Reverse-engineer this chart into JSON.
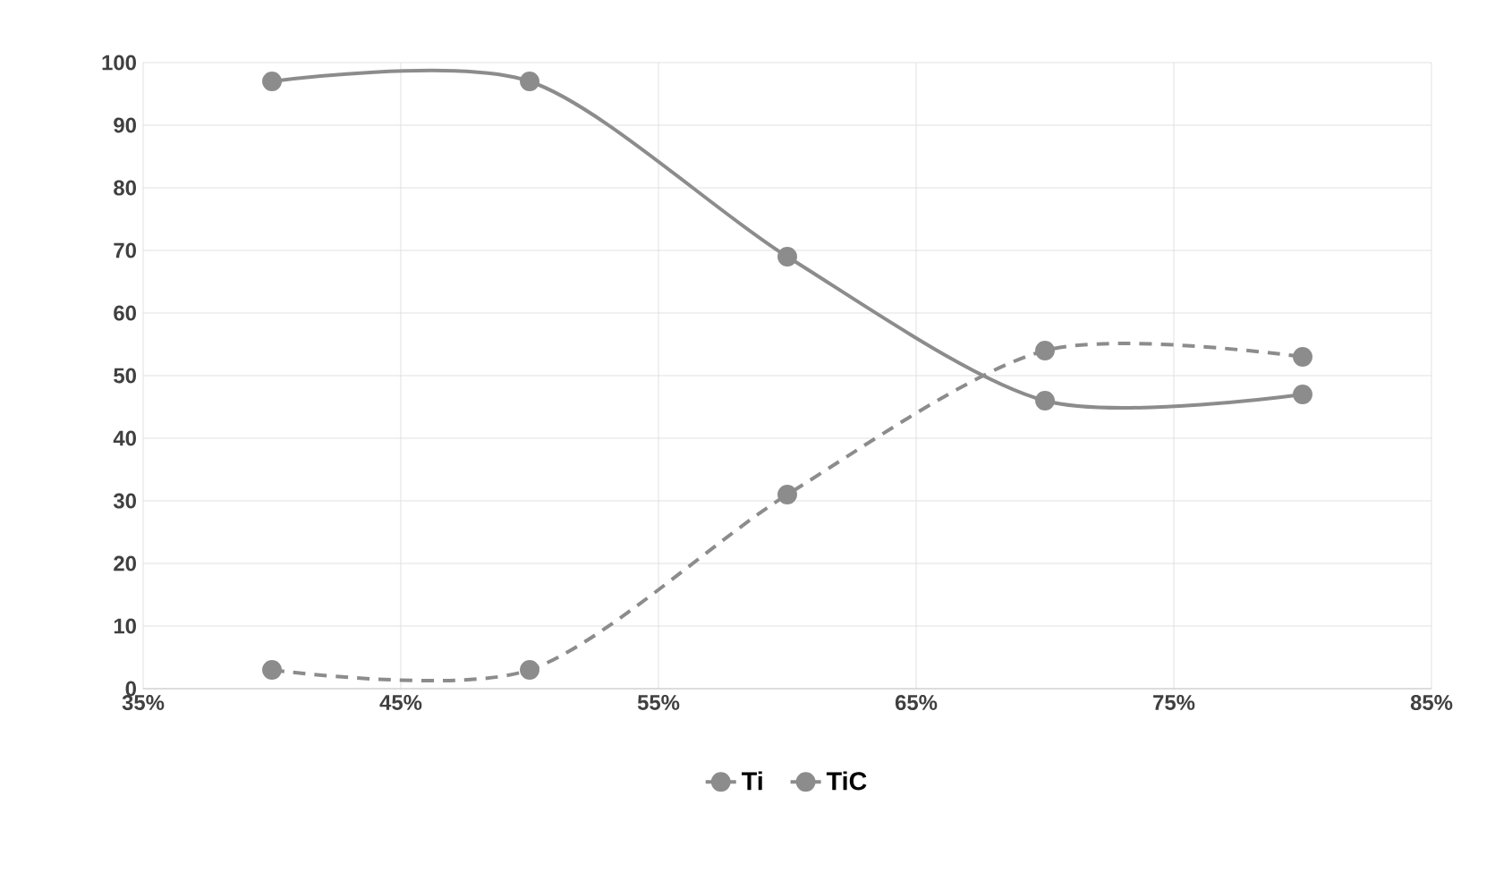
{
  "chart_data": {
    "type": "line",
    "x": [
      40,
      50,
      60,
      70,
      80
    ],
    "series": [
      {
        "name": "Ti",
        "color": "#8c8c8c",
        "values": [
          3,
          3,
          31,
          54,
          53
        ],
        "line_style": "dashed"
      },
      {
        "name": "TiC",
        "color": "#8c8c8c",
        "values": [
          97,
          97,
          69,
          46,
          47
        ],
        "line_style": "solid"
      }
    ],
    "xlim": [
      35,
      85
    ],
    "xticks": [
      {
        "value": 35,
        "label": "35%"
      },
      {
        "value": 45,
        "label": "45%"
      },
      {
        "value": 55,
        "label": "55%"
      },
      {
        "value": 65,
        "label": "65%"
      },
      {
        "value": 75,
        "label": "75%"
      },
      {
        "value": 85,
        "label": "85%"
      }
    ],
    "ylim": [
      0,
      100
    ],
    "yticks": [
      0,
      10,
      20,
      30,
      40,
      50,
      60,
      70,
      80,
      90,
      100
    ],
    "grid": true,
    "legend": "bottom",
    "marker": "circle"
  }
}
